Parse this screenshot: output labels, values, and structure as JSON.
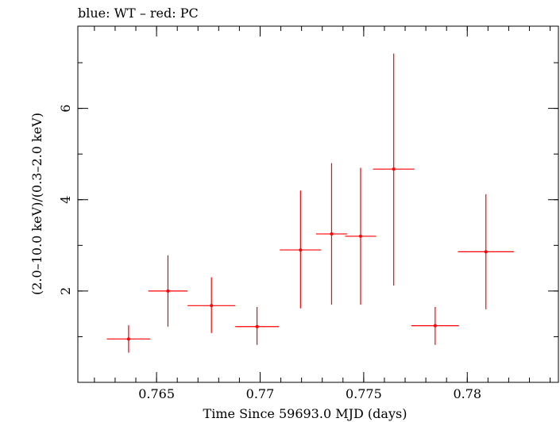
{
  "chart_data": {
    "type": "scatter",
    "title": "blue: WT – red: PC",
    "xlabel": "Time Since 59693.0 MJD (days)",
    "ylabel": "(2.0–10.0 keV)/(0.3–2.0 keV)",
    "xlim": [
      0.7612,
      0.7844
    ],
    "ylim": [
      0,
      7.8
    ],
    "x_ticks": [
      0.765,
      0.77,
      0.775,
      0.78
    ],
    "x_tick_labels": [
      "0.765",
      "0.77",
      "0.775",
      "0.78"
    ],
    "x_minor_step": 0.001,
    "y_ticks": [
      2,
      4,
      6
    ],
    "y_tick_labels": [
      "2",
      "4",
      "6"
    ],
    "y_minor_step": 1,
    "grid": false,
    "legend": "none",
    "series": [
      {
        "color": "#ff0000",
        "points": [
          {
            "x": 0.76365,
            "xerr": 0.00105,
            "y": 0.95,
            "ylo": 0.65,
            "yhi": 1.25
          },
          {
            "x": 0.76555,
            "xerr": 0.00095,
            "y": 2.0,
            "ylo": 1.22,
            "yhi": 2.78
          },
          {
            "x": 0.76765,
            "xerr": 0.00115,
            "y": 1.68,
            "ylo": 1.08,
            "yhi": 2.3
          },
          {
            "x": 0.76985,
            "xerr": 0.00105,
            "y": 1.22,
            "ylo": 0.82,
            "yhi": 1.65
          },
          {
            "x": 0.77195,
            "xerr": 0.001,
            "y": 2.9,
            "ylo": 1.62,
            "yhi": 4.2
          },
          {
            "x": 0.77345,
            "xerr": 0.00075,
            "y": 3.25,
            "ylo": 1.7,
            "yhi": 4.8
          },
          {
            "x": 0.77485,
            "xerr": 0.00075,
            "y": 3.2,
            "ylo": 1.7,
            "yhi": 4.7
          },
          {
            "x": 0.77645,
            "xerr": 0.001,
            "y": 4.67,
            "ylo": 2.12,
            "yhi": 7.2
          },
          {
            "x": 0.77845,
            "xerr": 0.00115,
            "y": 1.24,
            "ylo": 0.82,
            "yhi": 1.65
          },
          {
            "x": 0.7809,
            "xerr": 0.00135,
            "y": 2.86,
            "ylo": 1.6,
            "yhi": 4.12
          }
        ]
      }
    ]
  }
}
